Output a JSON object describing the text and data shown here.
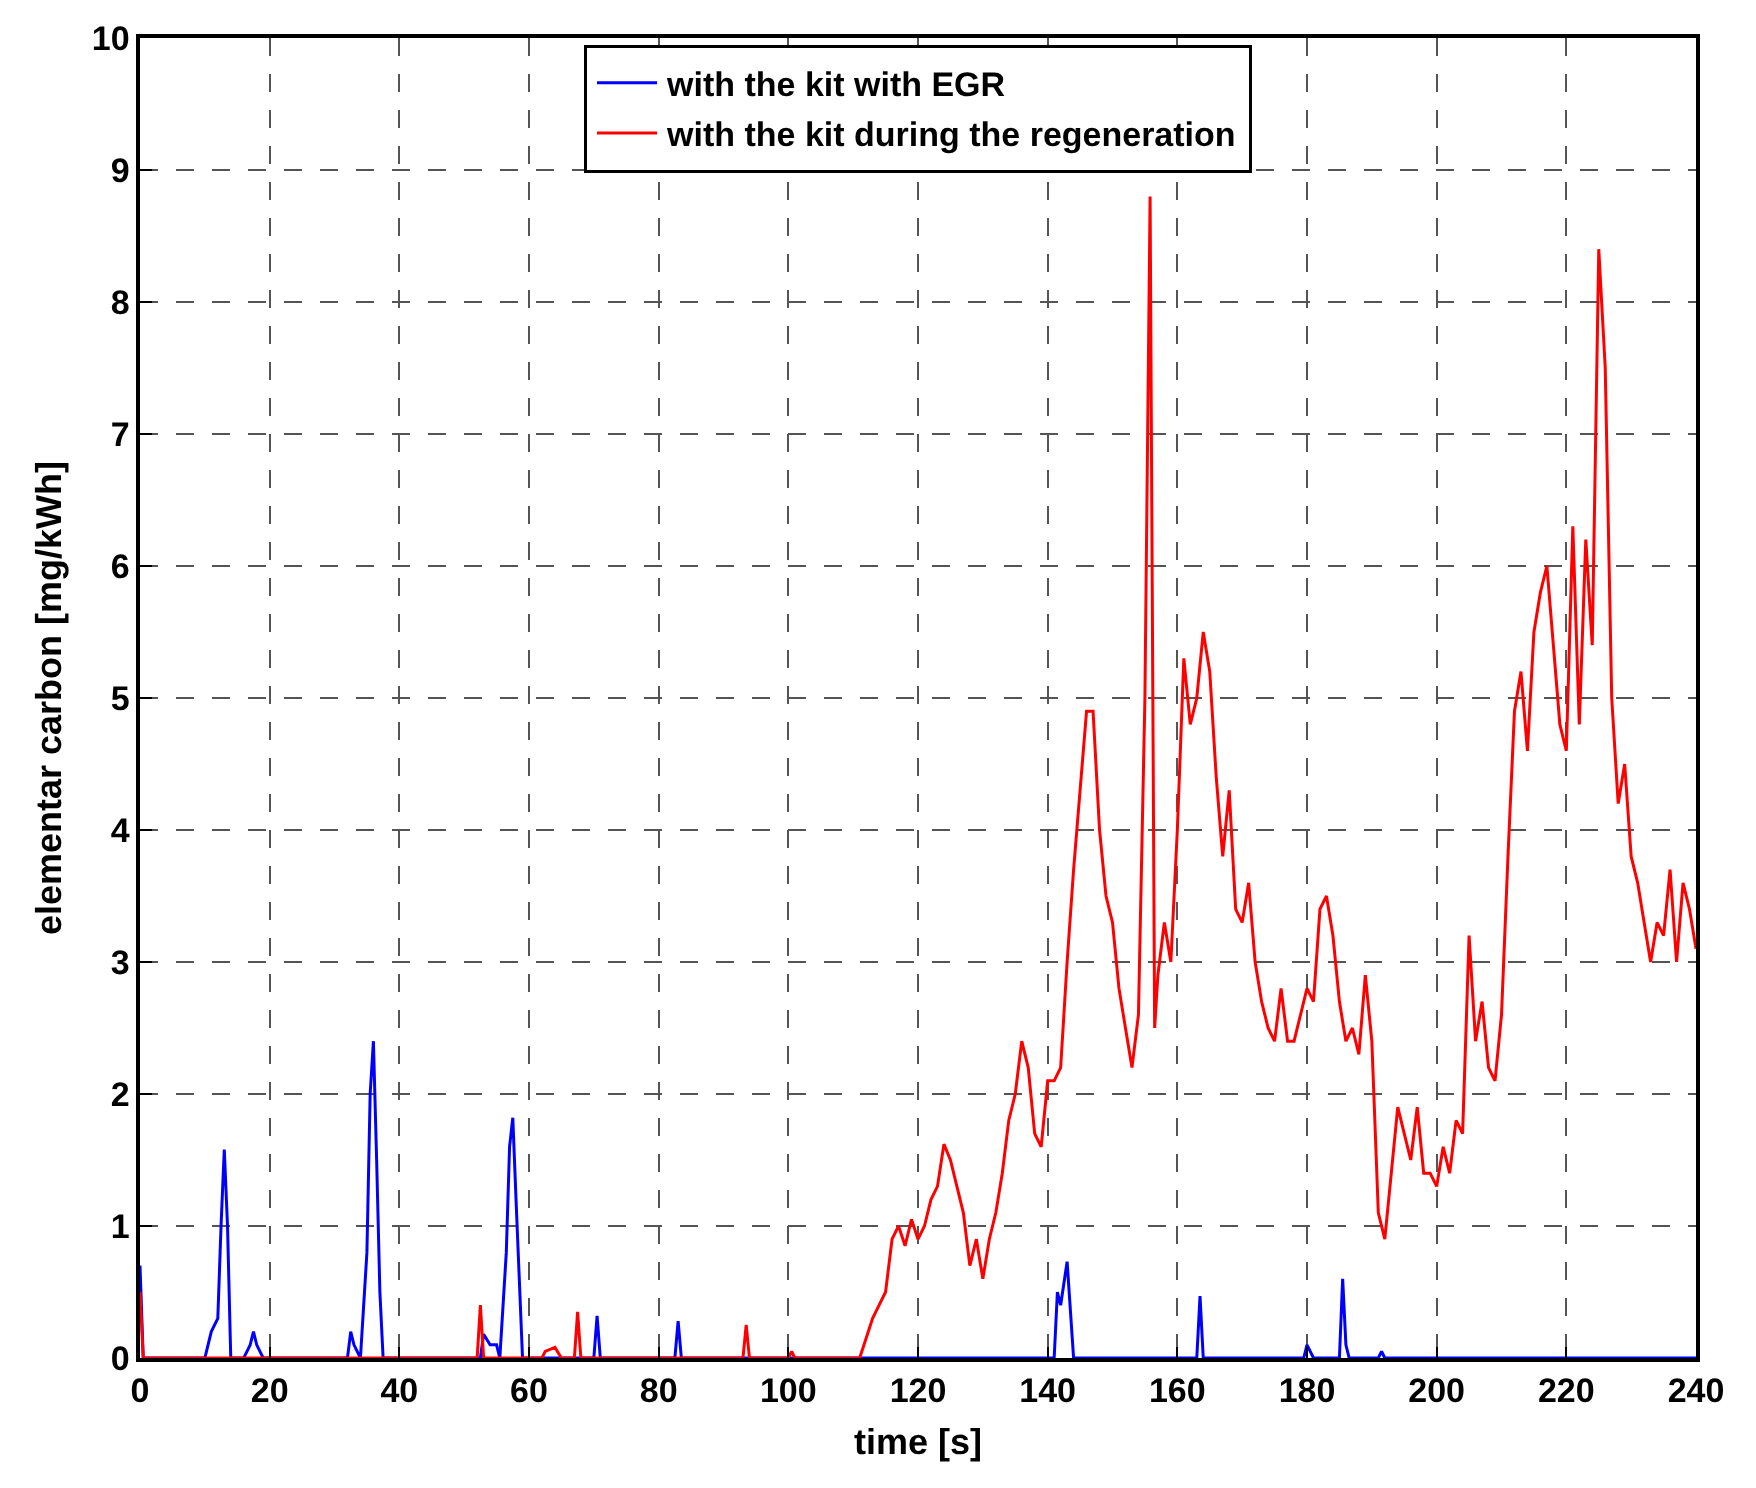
{
  "chart_data": {
    "type": "line",
    "xlabel": "time [s]",
    "ylabel": "elementar carbon [mg/kWh]",
    "xlim": [
      0,
      240
    ],
    "xticks": [
      0,
      20,
      40,
      60,
      80,
      100,
      120,
      140,
      160,
      180,
      200,
      220,
      240
    ],
    "ylim": [
      0,
      10
    ],
    "yticks": [
      0,
      1,
      2,
      3,
      4,
      5,
      6,
      7,
      8,
      9,
      10
    ],
    "grid": true,
    "legend": "top",
    "line_style": "solid",
    "marker": "none",
    "series": [
      {
        "name": "with the kit with EGR",
        "color": "#0000ff",
        "x": [
          0,
          0.5,
          10,
          11,
          12,
          12.5,
          13,
          13.5,
          14,
          16,
          17,
          17.5,
          18,
          19,
          32,
          32.5,
          33,
          34,
          35,
          35.5,
          36,
          36.5,
          37,
          37.5,
          52.5,
          53,
          54,
          55,
          55.5,
          56.5,
          57,
          57.5,
          58,
          59,
          70,
          70.5,
          71,
          82.5,
          83,
          83.5,
          141,
          141.5,
          142,
          143,
          144,
          163,
          163.5,
          164,
          179.5,
          180,
          181,
          185,
          185.5,
          186,
          186.5,
          191,
          191.5,
          192,
          240
        ],
        "values": [
          0.7,
          0,
          0,
          0.2,
          0.3,
          1.0,
          1.58,
          1.0,
          0,
          0,
          0.1,
          0.2,
          0.1,
          0,
          0,
          0.2,
          0.1,
          0,
          0.8,
          2.0,
          2.4,
          1.5,
          0.5,
          0,
          0,
          0.18,
          0.1,
          0.1,
          0,
          0.8,
          1.6,
          1.82,
          1.2,
          0,
          0,
          0.32,
          0,
          0,
          0.28,
          0,
          0,
          0.5,
          0.4,
          0.73,
          0,
          0,
          0.47,
          0,
          0,
          0.1,
          0,
          0,
          0.6,
          0.1,
          0,
          0,
          0.05,
          0,
          0
        ]
      },
      {
        "name": "with the kit during the regeneration",
        "color": "#ff0000",
        "x": [
          0,
          0.5,
          52,
          52.5,
          53,
          62,
          62.5,
          64,
          65,
          67,
          67.5,
          68,
          93,
          93.5,
          94,
          100,
          100.5,
          101,
          111,
          112,
          113,
          114,
          115,
          116,
          117,
          118,
          119,
          120,
          121,
          122,
          123,
          124,
          125,
          126,
          127,
          128,
          129,
          130,
          131,
          132,
          133,
          134,
          135,
          136,
          137,
          138,
          139,
          140,
          141,
          142,
          143,
          144,
          145,
          146,
          147,
          148,
          149,
          150,
          151,
          152,
          153,
          154,
          155,
          155.8,
          156.5,
          157,
          158,
          159,
          160,
          161,
          162,
          163,
          164,
          165,
          166,
          167,
          168,
          169,
          170,
          171,
          172,
          173,
          174,
          175,
          176,
          177,
          178,
          179,
          180,
          181,
          182,
          183,
          184,
          185,
          186,
          187,
          188,
          189,
          190,
          191,
          192,
          193,
          194,
          195,
          196,
          197,
          198,
          199,
          200,
          201,
          202,
          203,
          204,
          205,
          206,
          207,
          208,
          209,
          210,
          211,
          212,
          213,
          214,
          215,
          216,
          217,
          218,
          219,
          220,
          221,
          222,
          223,
          224,
          225,
          226,
          227,
          228,
          229,
          230,
          231,
          232,
          233,
          234,
          235,
          236,
          237,
          238,
          239,
          240
        ],
        "values": [
          0.5,
          0,
          0,
          0.4,
          0,
          0,
          0.05,
          0.08,
          0,
          0,
          0.35,
          0,
          0,
          0.25,
          0,
          0,
          0.05,
          0,
          0,
          0.15,
          0.3,
          0.4,
          0.5,
          0.9,
          1.0,
          0.85,
          1.05,
          0.9,
          1.0,
          1.2,
          1.3,
          1.62,
          1.5,
          1.3,
          1.1,
          0.7,
          0.9,
          0.6,
          0.9,
          1.1,
          1.4,
          1.8,
          2.0,
          2.4,
          2.2,
          1.7,
          1.6,
          2.1,
          2.1,
          2.2,
          3.0,
          3.7,
          4.3,
          4.9,
          4.9,
          4.0,
          3.5,
          3.3,
          2.8,
          2.5,
          2.2,
          2.6,
          5.0,
          8.8,
          2.5,
          2.9,
          3.3,
          3.0,
          4.0,
          5.3,
          4.8,
          5.0,
          5.5,
          5.2,
          4.4,
          3.8,
          4.3,
          3.4,
          3.3,
          3.6,
          3.0,
          2.7,
          2.5,
          2.4,
          2.8,
          2.4,
          2.4,
          2.6,
          2.8,
          2.7,
          3.4,
          3.5,
          3.2,
          2.7,
          2.4,
          2.5,
          2.3,
          2.9,
          2.4,
          1.1,
          0.9,
          1.4,
          1.9,
          1.7,
          1.5,
          1.9,
          1.4,
          1.4,
          1.3,
          1.6,
          1.4,
          1.8,
          1.7,
          3.2,
          2.4,
          2.7,
          2.2,
          2.1,
          2.6,
          3.8,
          4.9,
          5.2,
          4.6,
          5.5,
          5.8,
          6.0,
          5.4,
          4.8,
          4.6,
          6.3,
          4.8,
          6.2,
          5.4,
          8.4,
          7.5,
          5.0,
          4.2,
          4.5,
          3.8,
          3.6,
          3.3,
          3.0,
          3.3,
          3.2,
          3.7,
          3.0,
          3.6,
          3.4,
          3.1
        ]
      }
    ]
  }
}
